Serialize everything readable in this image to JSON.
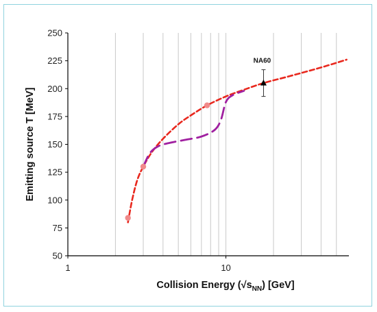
{
  "colors": {
    "frame_border": "#8fd3de",
    "grid": "#c8c8c8",
    "axis": "#000000",
    "red_curve": "#e8281e",
    "purple_curve": "#a020a0",
    "marker_pink": "#f08a8a",
    "na60_marker": "#000000"
  },
  "chart_data": {
    "type": "line",
    "x_scale": "log",
    "xlim": [
      1,
      60
    ],
    "ylim": [
      50,
      250
    ],
    "xlabel": "Collision Energy (√s",
    "xlabel_sub": "NN",
    "xlabel_tail": ")  [GeV]",
    "ylabel": "Emitting source T  [MeV]",
    "x_tick_labels": [
      {
        "value": 1,
        "label": "1"
      },
      {
        "value": 10,
        "label": "10"
      }
    ],
    "x_minor_gridlines": [
      2,
      3,
      4,
      5,
      6,
      7,
      8,
      9,
      20,
      30,
      40,
      50
    ],
    "y_ticks": [
      50,
      75,
      100,
      125,
      150,
      175,
      200,
      225,
      250
    ],
    "grid": "vertical",
    "legend": "none",
    "series": [
      {
        "style": "red-dashed",
        "x": [
          2.4,
          2.55,
          2.75,
          3.0,
          3.4,
          4.0,
          5.0,
          6.0,
          7.6,
          10.0,
          13.0,
          17.3,
          25.0,
          40.0,
          58.0
        ],
        "y": [
          80,
          100,
          118,
          130,
          143,
          155,
          168,
          176,
          185,
          193,
          199,
          205,
          211,
          219,
          226
        ]
      },
      {
        "style": "purple-dashed",
        "x": [
          3.0,
          3.3,
          3.7,
          4.3,
          5.5,
          7.0,
          8.5,
          9.3,
          10.0,
          11.0,
          13.0
        ],
        "y": [
          130,
          142,
          148,
          151,
          154,
          157,
          163,
          172,
          188,
          194,
          198
        ]
      }
    ],
    "markers": [
      {
        "x": 2.4,
        "y": 84
      },
      {
        "x": 3.0,
        "y": 130
      },
      {
        "x": 7.6,
        "y": 185
      }
    ],
    "annotations": [
      {
        "label": "NA60",
        "x": 17.3,
        "y": 205,
        "err_low": 193,
        "err_high": 217
      }
    ]
  }
}
